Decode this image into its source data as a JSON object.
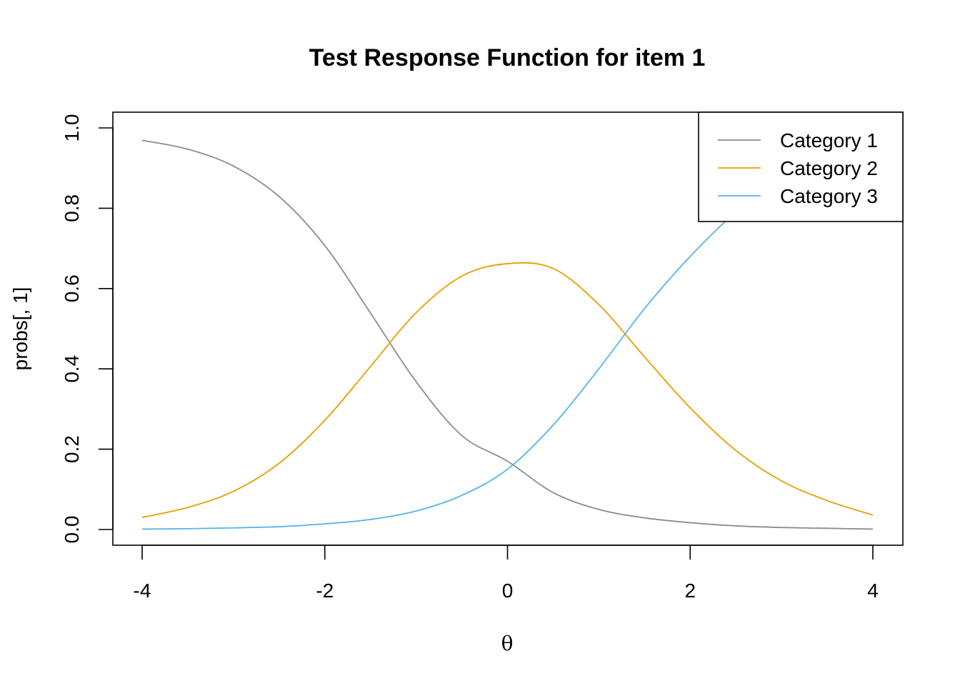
{
  "chart_data": {
    "type": "line",
    "title": "Test Response Function for item 1",
    "xlabel": "θ",
    "ylabel": "probs[, 1]",
    "xlim": [
      -4,
      4
    ],
    "ylim": [
      0,
      1
    ],
    "x_ticks": [
      "-4",
      "-2",
      "0",
      "2",
      "4"
    ],
    "y_ticks": [
      "0.0",
      "0.2",
      "0.4",
      "0.6",
      "0.8",
      "1.0"
    ],
    "grid": false,
    "legend_position": "top-right",
    "x": [
      -4.0,
      -3.5,
      -3.0,
      -2.5,
      -2.0,
      -1.5,
      -1.0,
      -0.5,
      0.0,
      0.5,
      1.0,
      1.5,
      2.0,
      2.5,
      3.0,
      3.5,
      4.0
    ],
    "series": [
      {
        "name": "Category 1",
        "color": "#8c8c8c",
        "values": [
          0.969,
          0.947,
          0.905,
          0.829,
          0.707,
          0.539,
          0.368,
          0.234,
          0.17,
          0.092,
          0.05,
          0.029,
          0.017,
          0.009,
          0.005,
          0.003,
          0.001
        ]
      },
      {
        "name": "Category 2",
        "color": "#e69f00",
        "values": [
          0.03,
          0.055,
          0.095,
          0.165,
          0.272,
          0.406,
          0.54,
          0.631,
          0.662,
          0.65,
          0.56,
          0.43,
          0.303,
          0.197,
          0.121,
          0.072,
          0.036
        ]
      },
      {
        "name": "Category 3",
        "color": "#56b4e9",
        "values": [
          0.001,
          0.002,
          0.004,
          0.007,
          0.014,
          0.025,
          0.046,
          0.085,
          0.15,
          0.26,
          0.4,
          0.55,
          0.68,
          0.79,
          0.87,
          0.93,
          0.965
        ]
      }
    ]
  }
}
